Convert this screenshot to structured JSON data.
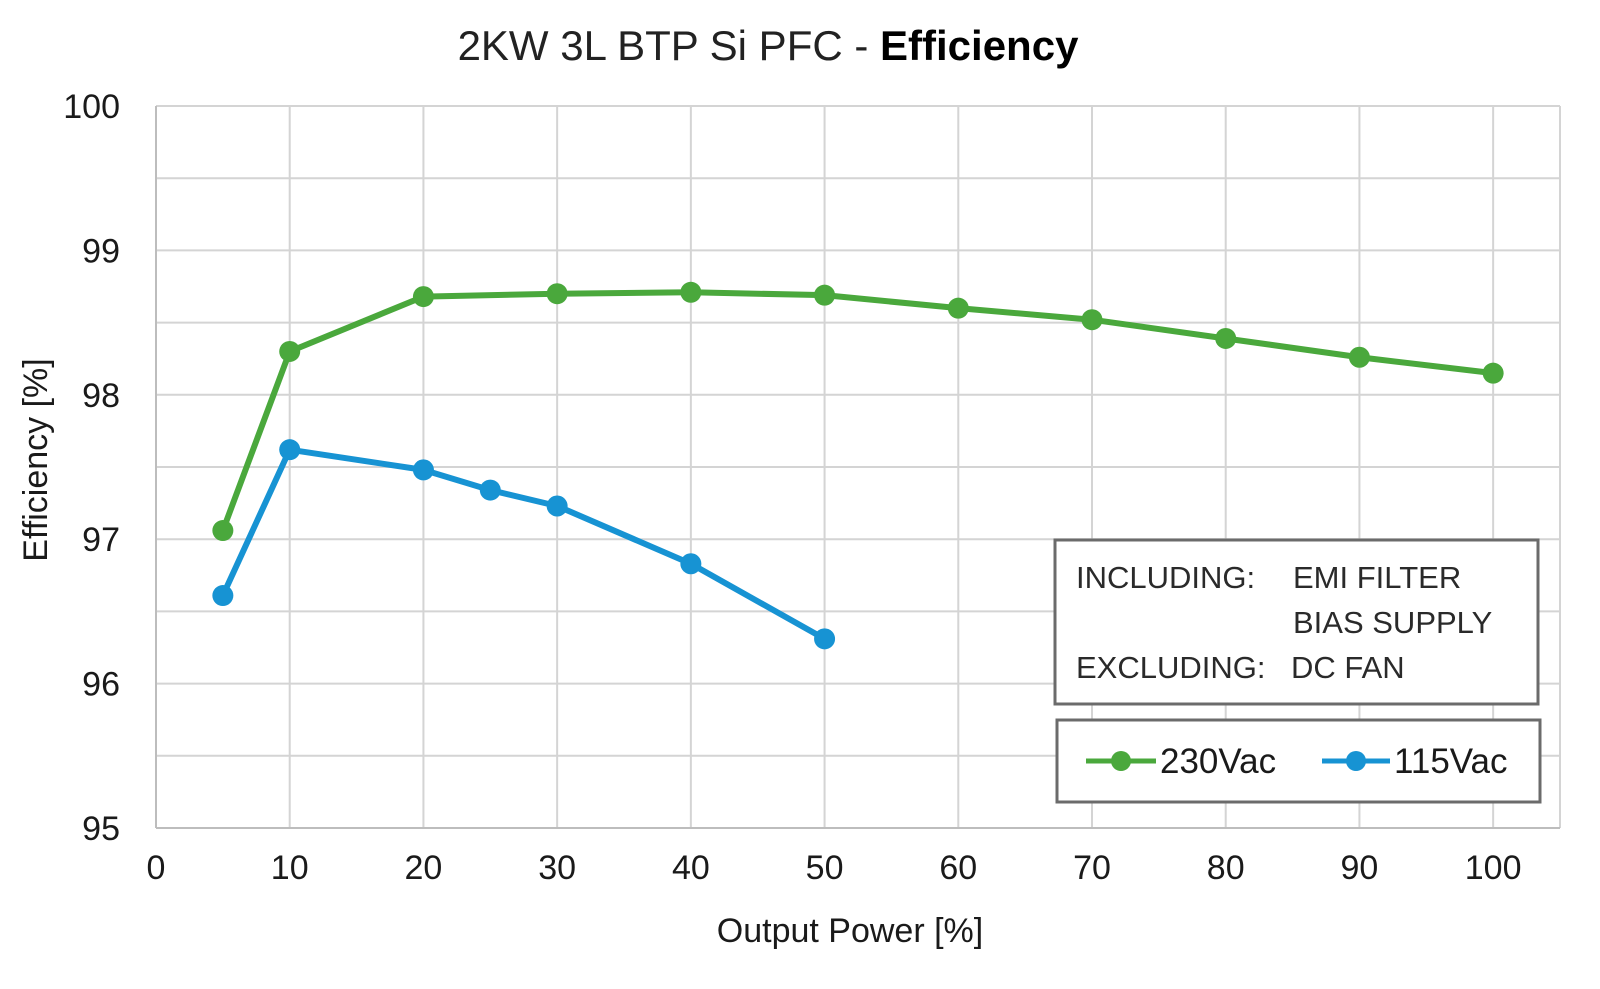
{
  "chart_data": {
    "type": "line",
    "title_prefix": "2KW 3L BTP Si PFC - ",
    "title_emphasis": "Efficiency",
    "xlabel": "Output Power [%]",
    "ylabel": "Efficiency [%]",
    "xlim": [
      0,
      105
    ],
    "ylim": [
      95,
      100
    ],
    "x_ticks": [
      0,
      10,
      20,
      30,
      40,
      50,
      60,
      70,
      80,
      90,
      100
    ],
    "y_ticks": [
      95,
      96,
      97,
      98,
      99,
      100
    ],
    "grid": true,
    "legend_position": "bottom-right",
    "series": [
      {
        "name": "230Vac",
        "color": "#4aa83c",
        "x": [
          5,
          10,
          20,
          30,
          40,
          50,
          60,
          70,
          80,
          90,
          100
        ],
        "y": [
          97.06,
          98.3,
          98.68,
          98.7,
          98.71,
          98.69,
          98.6,
          98.52,
          98.39,
          98.26,
          98.15
        ]
      },
      {
        "name": "115Vac",
        "color": "#1793d3",
        "x": [
          5,
          10,
          20,
          25,
          30,
          40,
          50
        ],
        "y": [
          96.61,
          97.62,
          97.48,
          97.34,
          97.23,
          96.83,
          96.31
        ]
      }
    ],
    "annotation": {
      "line1_label": "INCLUDING:",
      "line1_value": "EMI FILTER",
      "line2_value": "BIAS SUPPLY",
      "line3_label": "EXCLUDING:",
      "line3_value": "DC FAN"
    }
  }
}
